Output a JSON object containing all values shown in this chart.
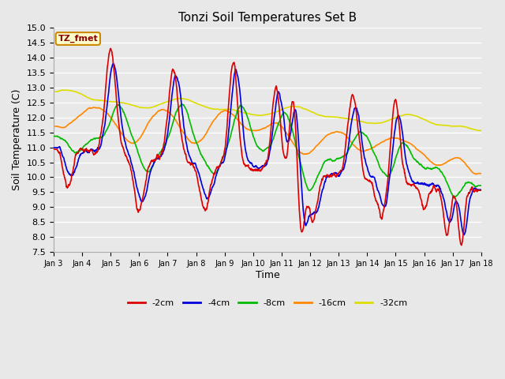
{
  "title": "Tonzi Soil Temperatures Set B",
  "xlabel": "Time",
  "ylabel": "Soil Temperature (C)",
  "ylim": [
    7.5,
    15.0
  ],
  "yticks": [
    7.5,
    8.0,
    8.5,
    9.0,
    9.5,
    10.0,
    10.5,
    11.0,
    11.5,
    12.0,
    12.5,
    13.0,
    13.5,
    14.0,
    14.5,
    15.0
  ],
  "xtick_labels": [
    "Jan 3",
    "Jan 4",
    "Jan 5",
    "Jan 6",
    "Jan 7",
    "Jan 8",
    "Jan 9",
    "Jan 10",
    "Jan 11",
    "Jan 12",
    "Jan 13",
    "Jan 14",
    "Jan 15",
    "Jan 16",
    "Jan 17",
    "Jan 18"
  ],
  "colors": {
    "-2cm": "#dd0000",
    "-4cm": "#0000dd",
    "-8cm": "#00bb00",
    "-16cm": "#ff8800",
    "-32cm": "#dddd00"
  },
  "legend_label_box_color": "#ffffcc",
  "legend_label_box_edge": "#cc8800",
  "annotation_text": "TZ_fmet",
  "annotation_color": "#880000",
  "background_color": "#e8e8e8",
  "plot_bg_color": "#e8e8e8",
  "figsize": [
    6.4,
    4.8
  ],
  "dpi": 100
}
